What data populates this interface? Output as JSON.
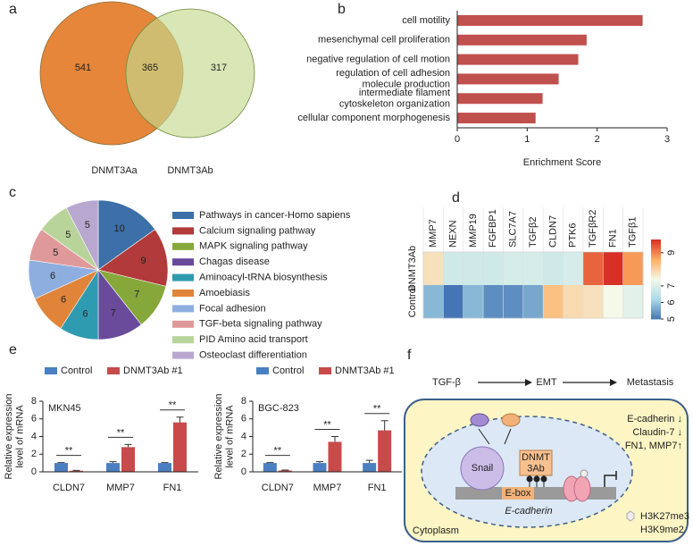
{
  "panel_labels": [
    "a",
    "b",
    "c",
    "d",
    "e",
    "f"
  ],
  "chart_data": [
    {
      "type": "venn",
      "sets": [
        "DNMT3Aa",
        "DNMT3Ab"
      ],
      "values": [
        541,
        365,
        317
      ],
      "colors": [
        "#e5863a",
        "#c5d88f"
      ]
    },
    {
      "type": "barh",
      "categories": [
        "cell motility",
        "mesenchymal cell proliferation",
        "negative regulation of cell motion",
        "regulation of cell adhesion\nmolecule production",
        "intermediate filament\ncytoskeleton organization",
        "cellular component morphogenesis"
      ],
      "values": [
        2.65,
        1.85,
        1.73,
        1.45,
        1.22,
        1.12
      ],
      "color": "#c0504d",
      "xlim": [
        0,
        3
      ],
      "xticks": [
        0,
        1,
        2,
        3
      ],
      "xlabel": "Enrichment Score"
    },
    {
      "type": "pie",
      "categories": [
        "Pathways in cancer-Homo sapiens",
        "Calcium signaling pathway",
        "MAPK signaling pathway",
        "Chagas disease",
        "Aminoacyl-tRNA biosynthesis",
        "Amoebiasis",
        "Focal adhesion",
        "TGF-beta signaling pathway",
        "PID Amino acid transport",
        "Osteoclast differentiation"
      ],
      "values": [
        10,
        9,
        7,
        7,
        6,
        6,
        6,
        5,
        5,
        5
      ],
      "colors": [
        "#3d6fa8",
        "#b23a3a",
        "#86a83a",
        "#6a4a9a",
        "#2f9bb0",
        "#e0843a",
        "#8eaee0",
        "#e0999a",
        "#b9d49a",
        "#b8a8d0"
      ]
    },
    {
      "type": "heatmap",
      "x": [
        "MMP7",
        "NEXN",
        "MMP19",
        "FGFBP1",
        "SLC7A7",
        "TGFβ2",
        "CLDN7",
        "PTK6",
        "TGFβR2",
        "FN1",
        "TGFβ1"
      ],
      "y": [
        "DNMT3Ab",
        "Control"
      ],
      "values": [
        [
          7.8,
          6.8,
          6.8,
          6.8,
          6.9,
          6.9,
          6.8,
          6.9,
          9.3,
          9.8,
          8.8
        ],
        [
          5.8,
          5.0,
          5.8,
          5.3,
          5.3,
          5.6,
          8.3,
          7.9,
          7.8,
          7.4,
          7.1
        ]
      ],
      "colormap": [
        "#4575b4",
        "#abd9e9",
        "#f4f9e9",
        "#fdae61",
        "#d73027"
      ],
      "clim": [
        5,
        9.8
      ],
      "cticks": [
        5,
        6,
        7,
        9
      ]
    },
    {
      "type": "grouped_bar",
      "title": "MKN45",
      "ylabel": "Relative expression\nlevel of mRNA",
      "categories": [
        "CLDN7",
        "MMP7",
        "FN1"
      ],
      "series": [
        {
          "name": "Control",
          "color": "#4a7fc1",
          "values": [
            1,
            1,
            1
          ],
          "errors": [
            0.05,
            0.15,
            0.05
          ]
        },
        {
          "name": "DNMT3Ab #1",
          "color": "#c94a4a",
          "values": [
            0.12,
            2.8,
            5.6
          ],
          "errors": [
            0.05,
            0.3,
            0.6
          ]
        }
      ],
      "ylim": [
        0,
        8
      ],
      "yticks": [
        0,
        2,
        4,
        6,
        8
      ],
      "annotations": [
        "**",
        "**",
        "**"
      ]
    },
    {
      "type": "grouped_bar",
      "title": "BGC-823",
      "ylabel": "Relative expression\nlevel of mRNA",
      "categories": [
        "CLDN7",
        "MMP7",
        "FN1"
      ],
      "series": [
        {
          "name": "Control",
          "color": "#4a7fc1",
          "values": [
            1,
            1,
            1
          ],
          "errors": [
            0.05,
            0.15,
            0.3
          ]
        },
        {
          "name": "DNMT3Ab #1",
          "color": "#c94a4a",
          "values": [
            0.15,
            3.4,
            4.7
          ],
          "errors": [
            0.05,
            0.6,
            1.1
          ]
        }
      ],
      "ylim": [
        0,
        8
      ],
      "yticks": [
        0,
        2,
        4,
        6,
        8
      ],
      "annotations": [
        "**",
        "**",
        "**"
      ]
    }
  ],
  "diagram": {
    "flow": [
      "TGF-β",
      "EMT",
      "Metastasis"
    ],
    "effects": [
      "E-cadherin ↓",
      "Claudin-7 ↓",
      "FN1, MMP7↑"
    ],
    "snail": "Snail",
    "dnmt": "DNMT\n3Ab",
    "ebox": "E-box",
    "gene": "E-cadherin",
    "marks": [
      "H3K27me3",
      "H3K9me2"
    ],
    "region": "Cytoplasm"
  }
}
